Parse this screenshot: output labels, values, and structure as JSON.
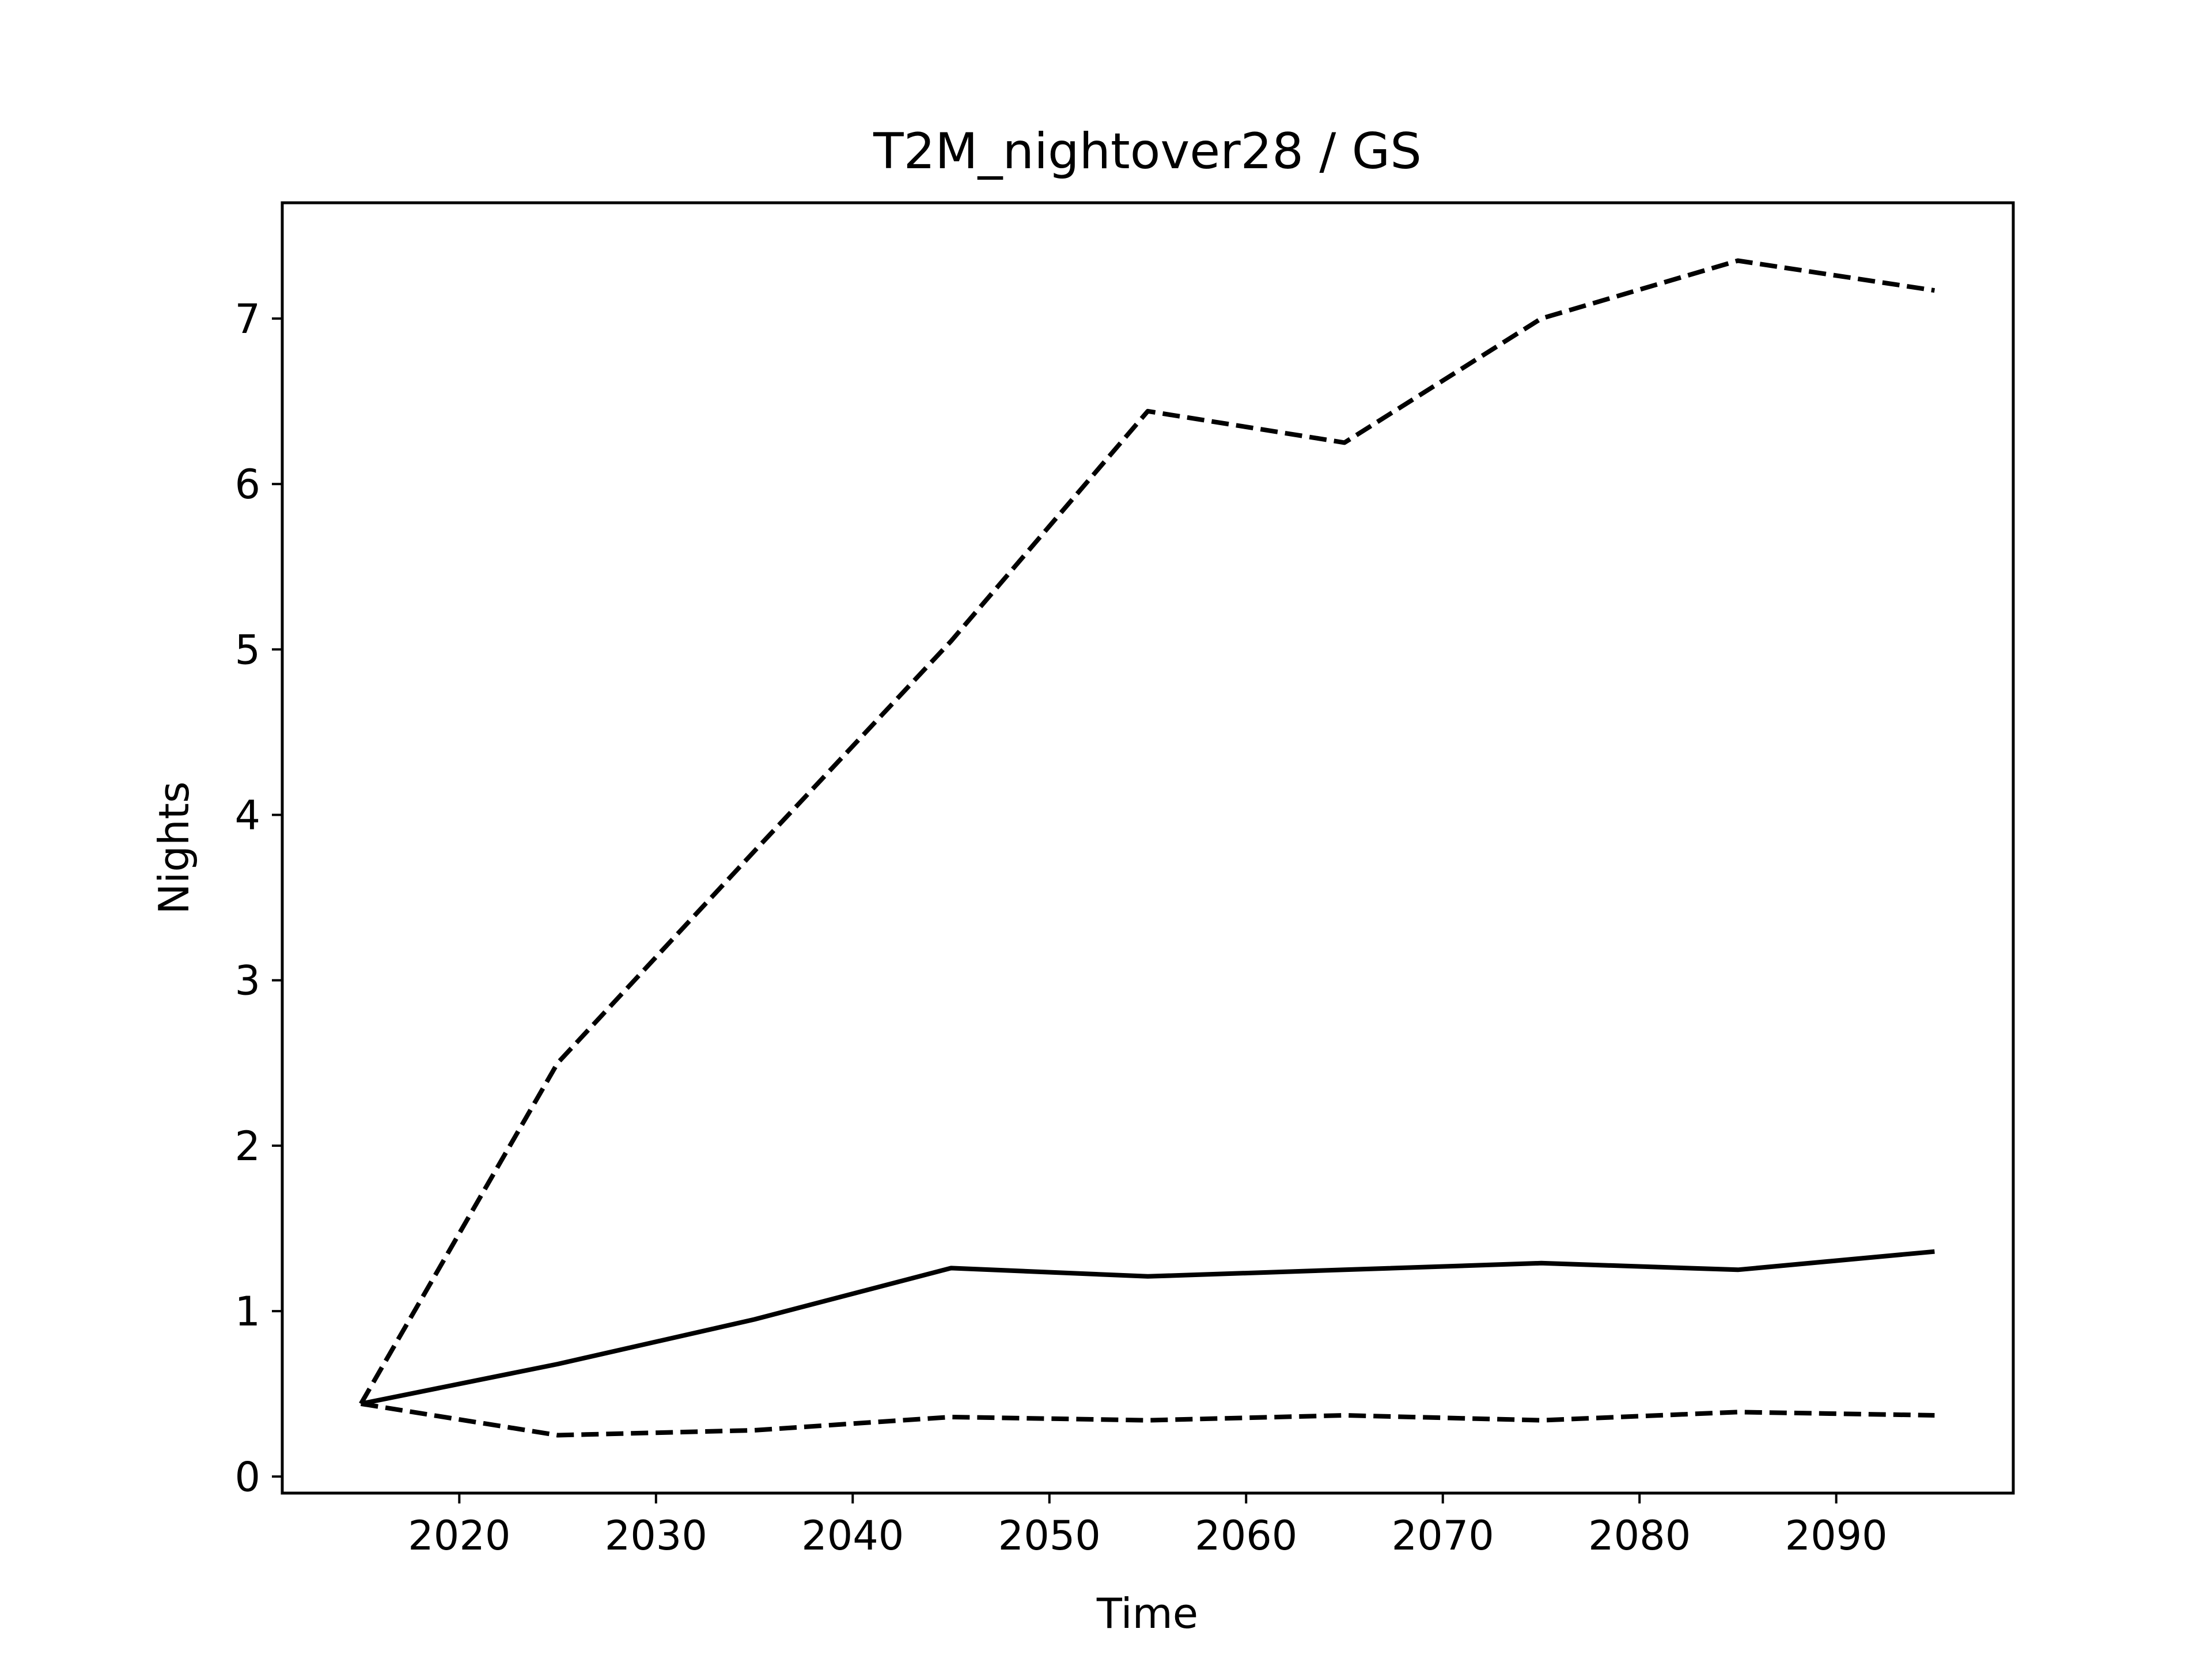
{
  "chart_data": {
    "type": "line",
    "title": "T2M_nightover28 / GS",
    "xlabel": "Time",
    "ylabel": "Nights",
    "x": [
      2015,
      2025,
      2035,
      2045,
      2055,
      2065,
      2075,
      2085,
      2095
    ],
    "xlim": [
      2011,
      2099
    ],
    "ylim": [
      -0.1,
      7.7
    ],
    "xticks": [
      2020,
      2030,
      2040,
      2050,
      2060,
      2070,
      2080,
      2090
    ],
    "yticks": [
      0,
      1,
      2,
      3,
      4,
      5,
      6,
      7
    ],
    "grid": false,
    "series": [
      {
        "style": "dashed",
        "color": "#000000",
        "values": [
          0.44,
          2.5,
          3.78,
          5.05,
          6.44,
          6.25,
          7.0,
          7.35,
          7.17
        ]
      },
      {
        "style": "solid",
        "color": "#000000",
        "values": [
          0.44,
          0.68,
          0.95,
          1.26,
          1.21,
          1.25,
          1.29,
          1.25,
          1.36
        ]
      },
      {
        "style": "dashed",
        "color": "#000000",
        "values": [
          0.44,
          0.25,
          0.28,
          0.36,
          0.34,
          0.37,
          0.34,
          0.39,
          0.37
        ]
      }
    ]
  }
}
